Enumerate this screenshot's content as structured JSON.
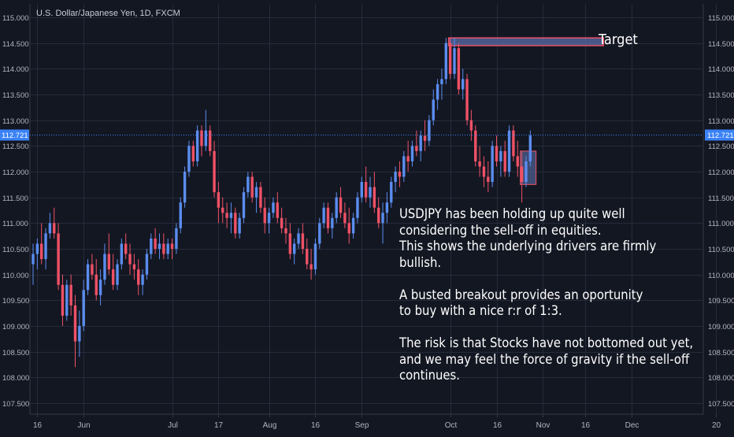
{
  "header": {
    "symbol": "U.S. Dollar/Japanese Yen, 1D, FXCM"
  },
  "annotations": {
    "target_label": "Target",
    "lines": [
      "USDJPY has been holding up quite well",
      "considering the sell-off in equities.",
      "This shows the underlying drivers are firmly",
      "bullish.",
      "",
      "A busted breakout provides an oportunity",
      "to buy with a nice r:r of 1:3.",
      "",
      "The risk is that Stocks have not bottomed out yet,",
      "and we may feel the force of gravity if the sell-off",
      "continues."
    ]
  },
  "colors": {
    "background": "#131722",
    "grid": "#262b3b",
    "bull": "#5b8def",
    "bear": "#ef5166",
    "axis_text": "#b2b5be",
    "price_line": "#3b82f6",
    "target_box_fill": "#5b6ea8",
    "target_box_border": "#ef5166",
    "entry_box_fill": "#5b6ea8"
  },
  "chart_data": {
    "type": "candlestick",
    "title": "U.S. Dollar/Japanese Yen, 1D, FXCM",
    "ylim": [
      107.4,
      115.1
    ],
    "yticks": [
      "115.000",
      "114.500",
      "114.000",
      "113.500",
      "113.000",
      "112.500",
      "112.000",
      "111.500",
      "111.000",
      "110.500",
      "110.000",
      "109.500",
      "109.000",
      "108.500",
      "108.000",
      "107.500"
    ],
    "ytick_values": [
      115.0,
      114.5,
      114.0,
      113.5,
      113.0,
      112.5,
      112.0,
      111.5,
      111.0,
      110.5,
      110.0,
      109.5,
      109.0,
      108.5,
      108.0,
      107.5
    ],
    "xticks": [
      {
        "label": "16",
        "index": 1
      },
      {
        "label": "Jun",
        "index": 12
      },
      {
        "label": "Jul",
        "index": 33
      },
      {
        "label": "17",
        "index": 44
      },
      {
        "label": "Aug",
        "index": 56
      },
      {
        "label": "16",
        "index": 67
      },
      {
        "label": "Sep",
        "index": 78
      },
      {
        "label": "Oct",
        "index": 99
      },
      {
        "label": "16",
        "index": 110
      },
      {
        "label": "Nov",
        "index": 121
      },
      {
        "label": "16",
        "index": 131
      },
      {
        "label": "Dec",
        "index": 142
      },
      {
        "label": "20",
        "index": 162
      }
    ],
    "current_price": 112.721,
    "current_price_label": "112.721",
    "target_zone": {
      "index_start": 99,
      "index_end": 135,
      "top": 114.6,
      "bottom": 114.45
    },
    "entry_zone": {
      "index_start": 116,
      "index_end": 119,
      "top": 112.4,
      "bottom": 111.75
    },
    "candles": [
      {
        "o": 110.2,
        "h": 110.6,
        "l": 109.8,
        "c": 110.4
      },
      {
        "o": 110.4,
        "h": 110.7,
        "l": 110.1,
        "c": 110.6
      },
      {
        "o": 110.6,
        "h": 111.0,
        "l": 110.2,
        "c": 110.3
      },
      {
        "o": 110.3,
        "h": 110.9,
        "l": 110.1,
        "c": 110.8
      },
      {
        "o": 110.8,
        "h": 111.2,
        "l": 110.7,
        "c": 111.0
      },
      {
        "o": 111.0,
        "h": 111.3,
        "l": 110.7,
        "c": 110.8
      },
      {
        "o": 110.8,
        "h": 111.0,
        "l": 109.7,
        "c": 109.8
      },
      {
        "o": 109.8,
        "h": 110.0,
        "l": 109.0,
        "c": 109.2
      },
      {
        "o": 109.2,
        "h": 109.9,
        "l": 109.1,
        "c": 109.8
      },
      {
        "o": 109.8,
        "h": 110.0,
        "l": 109.2,
        "c": 109.4
      },
      {
        "o": 109.4,
        "h": 109.6,
        "l": 108.2,
        "c": 108.7
      },
      {
        "o": 108.7,
        "h": 109.3,
        "l": 108.4,
        "c": 109.0
      },
      {
        "o": 109.0,
        "h": 109.9,
        "l": 108.9,
        "c": 109.7
      },
      {
        "o": 109.7,
        "h": 110.3,
        "l": 109.6,
        "c": 110.2
      },
      {
        "o": 110.2,
        "h": 110.4,
        "l": 109.9,
        "c": 110.0
      },
      {
        "o": 110.0,
        "h": 110.3,
        "l": 109.5,
        "c": 109.6
      },
      {
        "o": 109.6,
        "h": 110.1,
        "l": 109.4,
        "c": 109.9
      },
      {
        "o": 109.9,
        "h": 110.6,
        "l": 109.8,
        "c": 110.4
      },
      {
        "o": 110.4,
        "h": 110.8,
        "l": 110.0,
        "c": 110.1
      },
      {
        "o": 110.1,
        "h": 110.4,
        "l": 109.7,
        "c": 109.8
      },
      {
        "o": 109.8,
        "h": 110.3,
        "l": 109.7,
        "c": 110.2
      },
      {
        "o": 110.2,
        "h": 110.7,
        "l": 110.1,
        "c": 110.6
      },
      {
        "o": 110.6,
        "h": 110.8,
        "l": 110.3,
        "c": 110.4
      },
      {
        "o": 110.4,
        "h": 110.6,
        "l": 110.0,
        "c": 110.2
      },
      {
        "o": 110.2,
        "h": 110.4,
        "l": 109.9,
        "c": 110.1
      },
      {
        "o": 110.1,
        "h": 110.3,
        "l": 109.6,
        "c": 109.8
      },
      {
        "o": 109.8,
        "h": 110.1,
        "l": 109.6,
        "c": 110.0
      },
      {
        "o": 110.0,
        "h": 110.5,
        "l": 109.9,
        "c": 110.4
      },
      {
        "o": 110.4,
        "h": 110.8,
        "l": 110.3,
        "c": 110.7
      },
      {
        "o": 110.7,
        "h": 110.9,
        "l": 110.4,
        "c": 110.5
      },
      {
        "o": 110.5,
        "h": 110.8,
        "l": 110.3,
        "c": 110.6
      },
      {
        "o": 110.6,
        "h": 110.8,
        "l": 110.3,
        "c": 110.4
      },
      {
        "o": 110.4,
        "h": 110.7,
        "l": 110.3,
        "c": 110.6
      },
      {
        "o": 110.6,
        "h": 110.7,
        "l": 110.3,
        "c": 110.5
      },
      {
        "o": 110.5,
        "h": 111.0,
        "l": 110.4,
        "c": 110.9
      },
      {
        "o": 110.9,
        "h": 111.5,
        "l": 110.8,
        "c": 111.4
      },
      {
        "o": 111.4,
        "h": 112.1,
        "l": 111.3,
        "c": 112.0
      },
      {
        "o": 112.0,
        "h": 112.6,
        "l": 111.9,
        "c": 112.5
      },
      {
        "o": 112.5,
        "h": 112.6,
        "l": 112.1,
        "c": 112.2
      },
      {
        "o": 112.2,
        "h": 112.9,
        "l": 112.1,
        "c": 112.8
      },
      {
        "o": 112.8,
        "h": 112.9,
        "l": 112.3,
        "c": 112.5
      },
      {
        "o": 112.5,
        "h": 113.2,
        "l": 112.4,
        "c": 112.8
      },
      {
        "o": 112.8,
        "h": 112.9,
        "l": 112.3,
        "c": 112.4
      },
      {
        "o": 112.4,
        "h": 112.6,
        "l": 111.5,
        "c": 111.6
      },
      {
        "o": 111.6,
        "h": 111.8,
        "l": 111.0,
        "c": 111.3
      },
      {
        "o": 111.3,
        "h": 111.5,
        "l": 111.0,
        "c": 111.2
      },
      {
        "o": 111.2,
        "h": 111.4,
        "l": 110.9,
        "c": 111.1
      },
      {
        "o": 111.1,
        "h": 111.4,
        "l": 110.8,
        "c": 111.2
      },
      {
        "o": 111.2,
        "h": 111.3,
        "l": 110.7,
        "c": 110.8
      },
      {
        "o": 110.8,
        "h": 111.2,
        "l": 110.7,
        "c": 111.1
      },
      {
        "o": 111.1,
        "h": 111.7,
        "l": 111.0,
        "c": 111.6
      },
      {
        "o": 111.6,
        "h": 112.0,
        "l": 111.5,
        "c": 111.9
      },
      {
        "o": 111.9,
        "h": 112.0,
        "l": 111.4,
        "c": 111.5
      },
      {
        "o": 111.5,
        "h": 111.8,
        "l": 111.2,
        "c": 111.7
      },
      {
        "o": 111.7,
        "h": 111.8,
        "l": 111.2,
        "c": 111.3
      },
      {
        "o": 111.3,
        "h": 111.5,
        "l": 110.8,
        "c": 111.0
      },
      {
        "o": 111.0,
        "h": 111.3,
        "l": 110.8,
        "c": 111.2
      },
      {
        "o": 111.2,
        "h": 111.5,
        "l": 111.1,
        "c": 111.4
      },
      {
        "o": 111.4,
        "h": 111.6,
        "l": 111.0,
        "c": 111.1
      },
      {
        "o": 111.1,
        "h": 111.3,
        "l": 110.8,
        "c": 110.9
      },
      {
        "o": 110.9,
        "h": 111.1,
        "l": 110.6,
        "c": 110.8
      },
      {
        "o": 110.8,
        "h": 111.0,
        "l": 110.3,
        "c": 110.4
      },
      {
        "o": 110.4,
        "h": 110.7,
        "l": 110.2,
        "c": 110.6
      },
      {
        "o": 110.6,
        "h": 110.9,
        "l": 110.5,
        "c": 110.8
      },
      {
        "o": 110.8,
        "h": 111.0,
        "l": 110.4,
        "c": 110.5
      },
      {
        "o": 110.5,
        "h": 110.7,
        "l": 110.1,
        "c": 110.2
      },
      {
        "o": 110.2,
        "h": 110.5,
        "l": 109.9,
        "c": 110.1
      },
      {
        "o": 110.1,
        "h": 110.7,
        "l": 110.0,
        "c": 110.6
      },
      {
        "o": 110.6,
        "h": 111.1,
        "l": 110.5,
        "c": 111.0
      },
      {
        "o": 111.0,
        "h": 111.4,
        "l": 110.9,
        "c": 111.3
      },
      {
        "o": 111.3,
        "h": 111.4,
        "l": 110.8,
        "c": 110.9
      },
      {
        "o": 110.9,
        "h": 111.2,
        "l": 110.7,
        "c": 111.1
      },
      {
        "o": 111.1,
        "h": 111.6,
        "l": 111.0,
        "c": 111.5
      },
      {
        "o": 111.5,
        "h": 111.7,
        "l": 111.1,
        "c": 111.2
      },
      {
        "o": 111.2,
        "h": 111.4,
        "l": 110.9,
        "c": 111.0
      },
      {
        "o": 111.0,
        "h": 111.3,
        "l": 110.6,
        "c": 110.8
      },
      {
        "o": 110.8,
        "h": 111.2,
        "l": 110.7,
        "c": 111.1
      },
      {
        "o": 111.1,
        "h": 111.6,
        "l": 111.0,
        "c": 111.5
      },
      {
        "o": 111.5,
        "h": 111.9,
        "l": 111.4,
        "c": 111.8
      },
      {
        "o": 111.8,
        "h": 112.1,
        "l": 111.4,
        "c": 111.5
      },
      {
        "o": 111.5,
        "h": 111.9,
        "l": 111.3,
        "c": 111.7
      },
      {
        "o": 111.7,
        "h": 112.0,
        "l": 111.2,
        "c": 111.3
      },
      {
        "o": 111.3,
        "h": 111.5,
        "l": 110.9,
        "c": 111.0
      },
      {
        "o": 111.0,
        "h": 111.4,
        "l": 110.6,
        "c": 111.2
      },
      {
        "o": 111.2,
        "h": 111.6,
        "l": 111.0,
        "c": 111.4
      },
      {
        "o": 111.4,
        "h": 111.9,
        "l": 111.3,
        "c": 111.8
      },
      {
        "o": 111.8,
        "h": 112.1,
        "l": 111.6,
        "c": 112.0
      },
      {
        "o": 112.0,
        "h": 112.2,
        "l": 111.7,
        "c": 111.9
      },
      {
        "o": 111.9,
        "h": 112.4,
        "l": 111.8,
        "c": 112.3
      },
      {
        "o": 112.3,
        "h": 112.6,
        "l": 112.0,
        "c": 112.2
      },
      {
        "o": 112.2,
        "h": 112.6,
        "l": 112.1,
        "c": 112.5
      },
      {
        "o": 112.5,
        "h": 112.8,
        "l": 112.3,
        "c": 112.4
      },
      {
        "o": 112.4,
        "h": 112.8,
        "l": 112.2,
        "c": 112.7
      },
      {
        "o": 112.7,
        "h": 113.0,
        "l": 112.4,
        "c": 112.6
      },
      {
        "o": 112.6,
        "h": 113.1,
        "l": 112.5,
        "c": 113.0
      },
      {
        "o": 113.0,
        "h": 113.6,
        "l": 112.9,
        "c": 113.4
      },
      {
        "o": 113.4,
        "h": 113.8,
        "l": 113.2,
        "c": 113.7
      },
      {
        "o": 113.7,
        "h": 114.0,
        "l": 113.4,
        "c": 113.8
      },
      {
        "o": 113.8,
        "h": 114.6,
        "l": 113.7,
        "c": 114.5
      },
      {
        "o": 114.5,
        "h": 114.6,
        "l": 113.8,
        "c": 113.9
      },
      {
        "o": 113.9,
        "h": 114.6,
        "l": 113.8,
        "c": 114.4
      },
      {
        "o": 114.4,
        "h": 114.5,
        "l": 113.5,
        "c": 113.6
      },
      {
        "o": 113.6,
        "h": 114.0,
        "l": 113.4,
        "c": 113.8
      },
      {
        "o": 113.8,
        "h": 113.9,
        "l": 112.9,
        "c": 113.0
      },
      {
        "o": 113.0,
        "h": 113.2,
        "l": 112.6,
        "c": 112.8
      },
      {
        "o": 112.8,
        "h": 112.9,
        "l": 112.1,
        "c": 112.2
      },
      {
        "o": 112.2,
        "h": 112.5,
        "l": 111.9,
        "c": 112.1
      },
      {
        "o": 112.1,
        "h": 112.3,
        "l": 111.7,
        "c": 111.9
      },
      {
        "o": 111.9,
        "h": 112.2,
        "l": 111.6,
        "c": 111.8
      },
      {
        "o": 111.8,
        "h": 112.6,
        "l": 111.7,
        "c": 112.5
      },
      {
        "o": 112.5,
        "h": 112.7,
        "l": 112.1,
        "c": 112.2
      },
      {
        "o": 112.2,
        "h": 112.5,
        "l": 111.9,
        "c": 112.4
      },
      {
        "o": 112.4,
        "h": 112.6,
        "l": 111.9,
        "c": 112.0
      },
      {
        "o": 112.0,
        "h": 112.9,
        "l": 111.9,
        "c": 112.8
      },
      {
        "o": 112.8,
        "h": 112.9,
        "l": 112.2,
        "c": 112.3
      },
      {
        "o": 112.3,
        "h": 112.6,
        "l": 111.9,
        "c": 112.1
      },
      {
        "o": 112.1,
        "h": 112.4,
        "l": 111.4,
        "c": 111.8
      },
      {
        "o": 111.8,
        "h": 112.3,
        "l": 111.7,
        "c": 112.2
      },
      {
        "o": 112.2,
        "h": 112.8,
        "l": 112.1,
        "c": 112.7
      }
    ]
  }
}
